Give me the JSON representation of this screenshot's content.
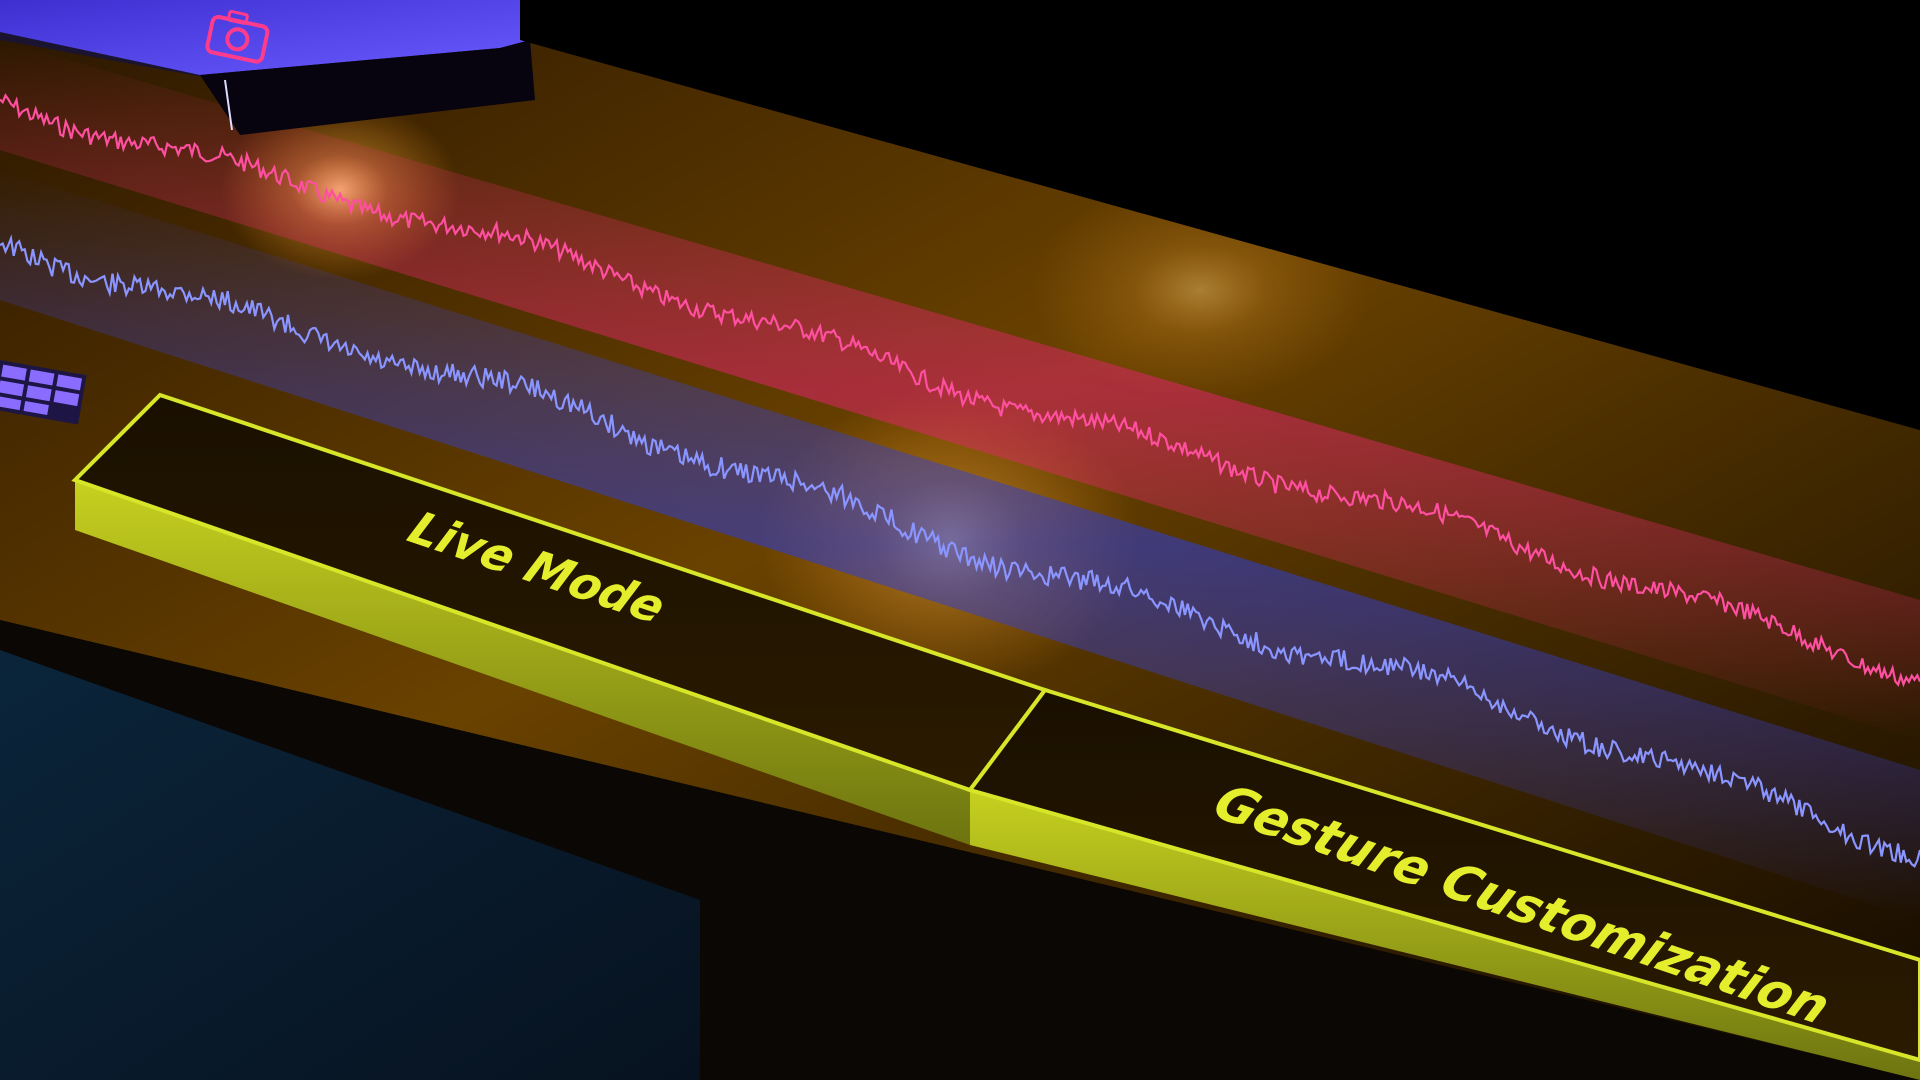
{
  "scene": {
    "description_label": "3D rendered strip with waveform tracks and mode buttons"
  },
  "buttons": {
    "live_mode": "Live Mode",
    "gesture_customization": "Gesture Customization"
  },
  "icons": {
    "camera": "camera-icon",
    "grid": "grid-icon"
  },
  "colors": {
    "waveform_top": "#ff4fa0",
    "waveform_bottom": "#7f8bff",
    "button_border": "#d8e62a",
    "button_text": "#e4ee2c",
    "panel": "#3b2300",
    "camera_panel": "#5b47e8"
  }
}
